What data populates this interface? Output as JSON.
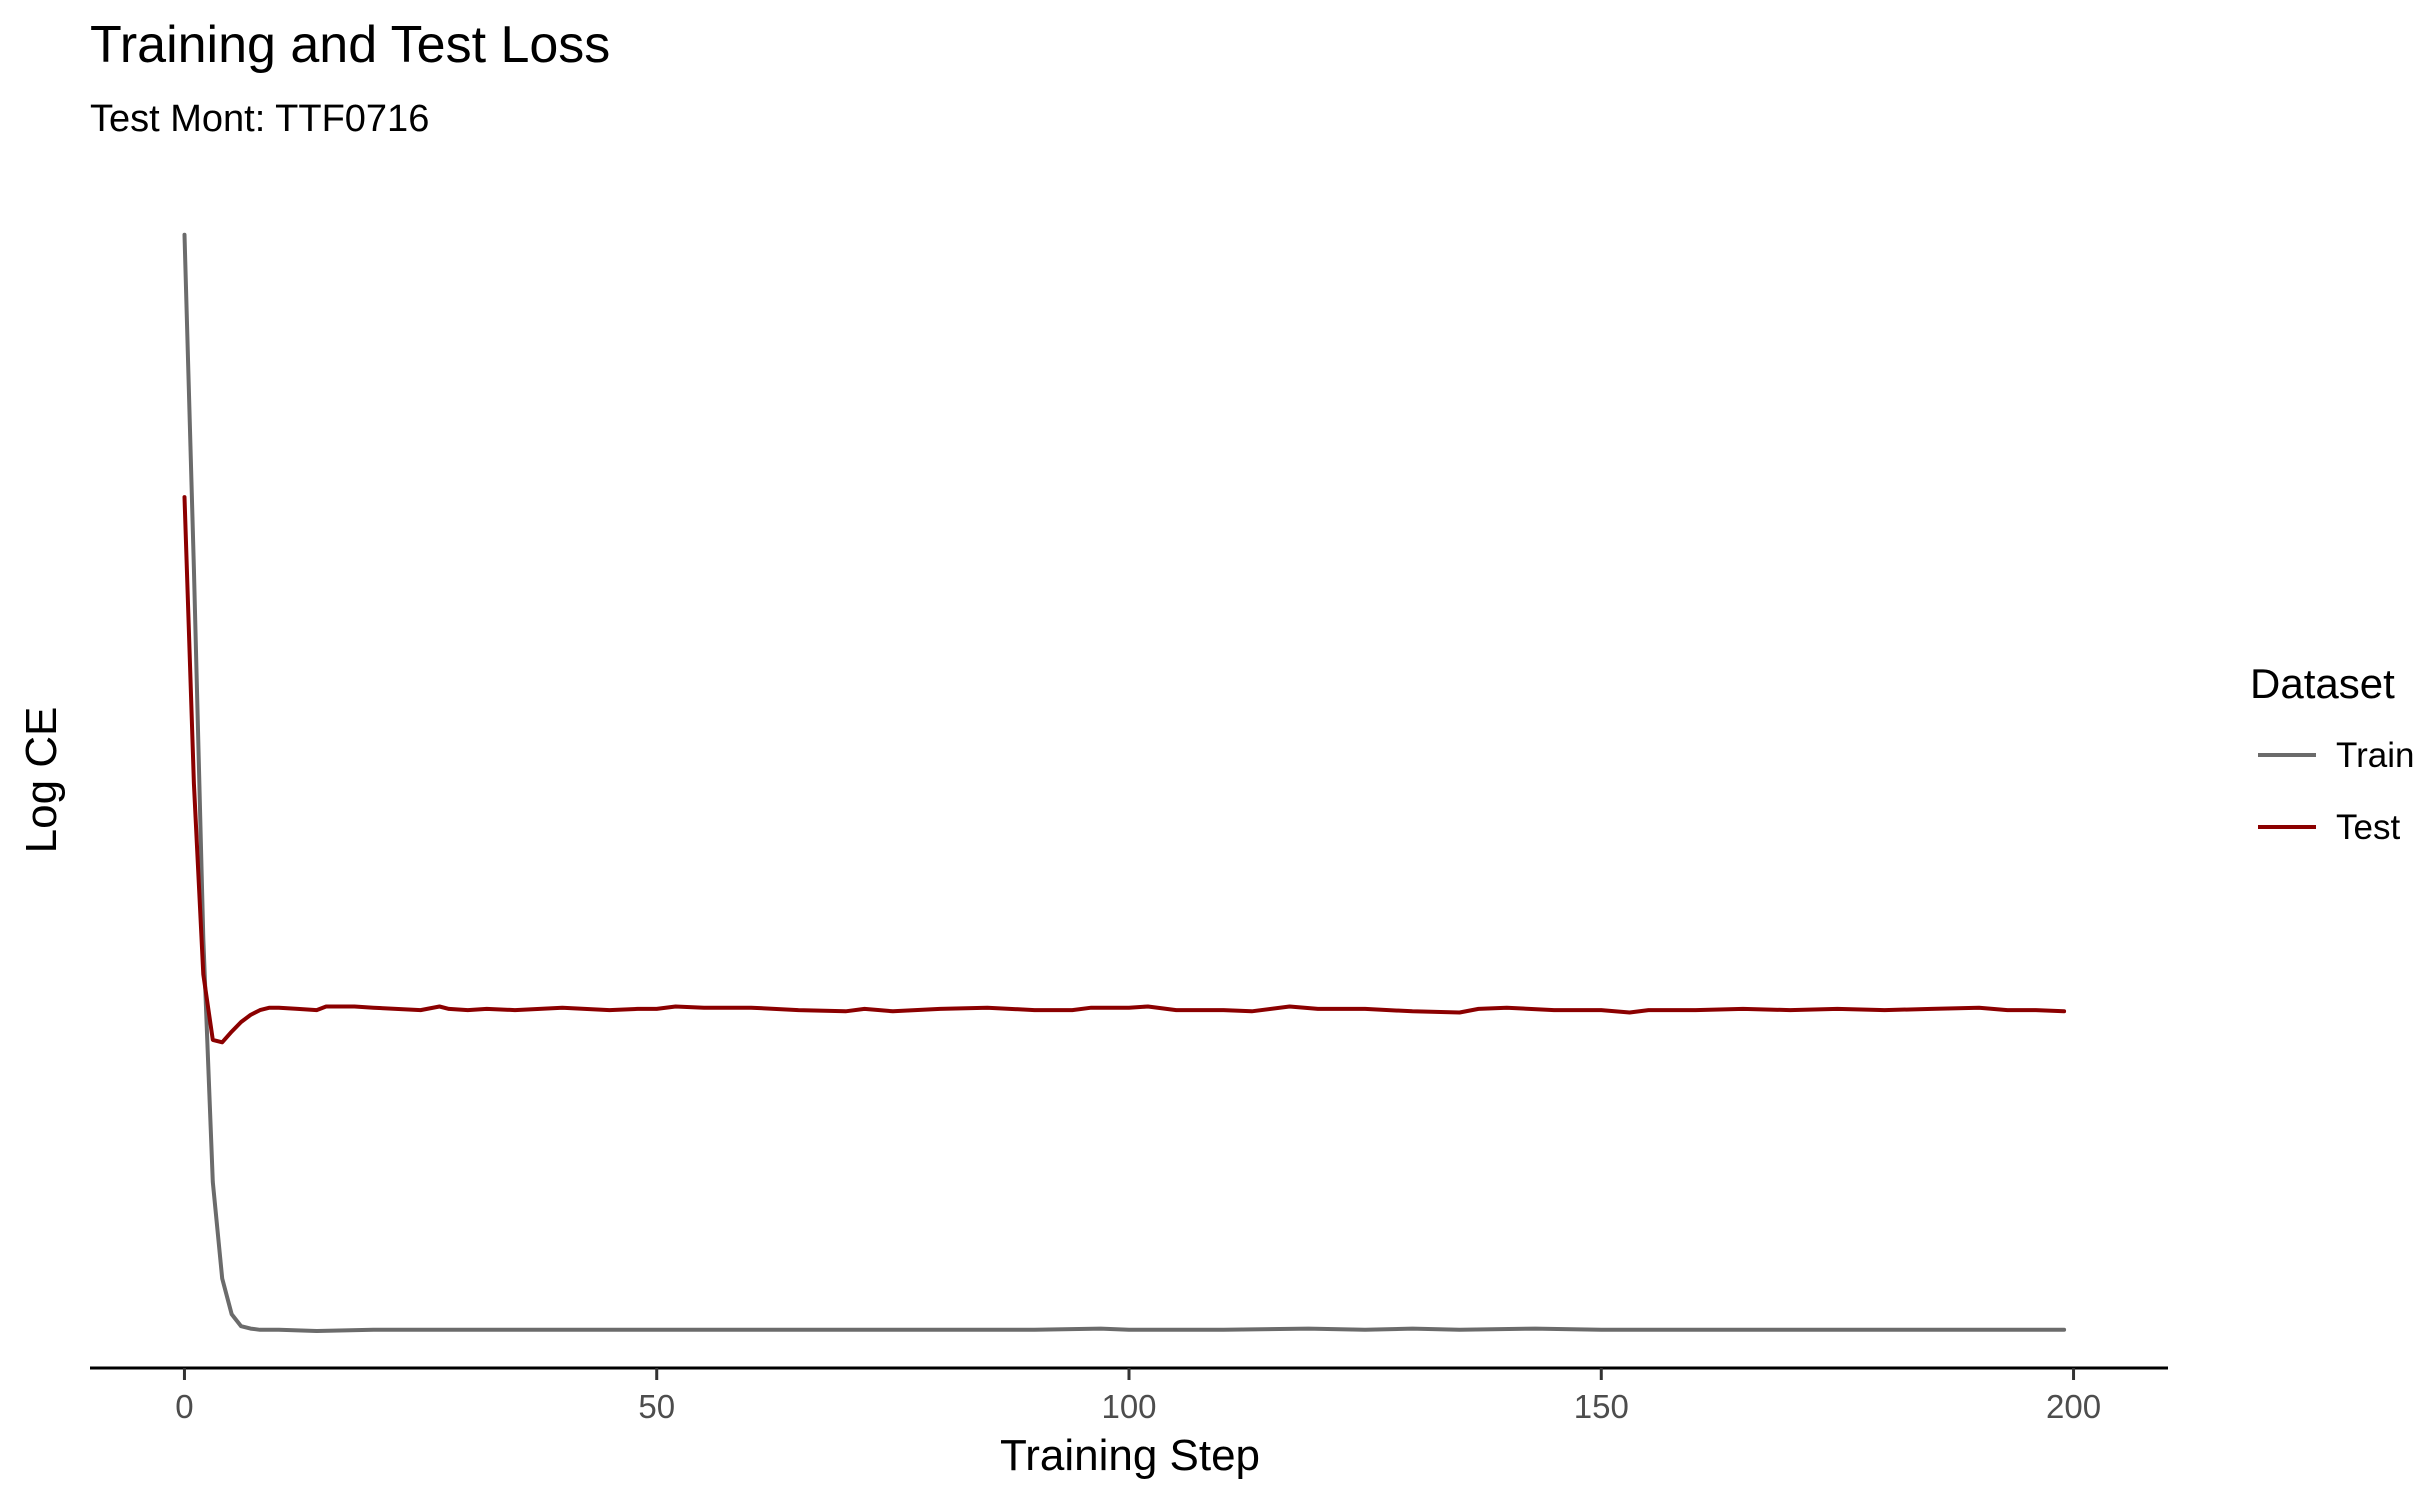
{
  "chart_data": {
    "type": "line",
    "title": "Training and Test Loss",
    "subtitle": "Test Mont: TTF0716",
    "xlabel": "Training Step",
    "ylabel": "Log CE",
    "xlim": [
      -10,
      210
    ],
    "ylim": [
      0,
      1
    ],
    "xticks": [
      0,
      50,
      100,
      150,
      200
    ],
    "xtick_labels": [
      "0",
      "50",
      "100",
      "150",
      "200"
    ],
    "y_tick_labels_shown": false,
    "grid": false,
    "legend": {
      "title": "Dataset",
      "position": "right"
    },
    "series": [
      {
        "name": "Train",
        "color": "#6b6b6b",
        "points": [
          [
            0,
            0.95
          ],
          [
            1,
            0.67
          ],
          [
            2,
            0.36
          ],
          [
            3,
            0.156
          ],
          [
            4,
            0.075
          ],
          [
            5,
            0.045
          ],
          [
            6,
            0.035
          ],
          [
            7,
            0.033
          ],
          [
            8,
            0.032
          ],
          [
            10,
            0.032
          ],
          [
            14,
            0.031
          ],
          [
            20,
            0.032
          ],
          [
            30,
            0.032
          ],
          [
            40,
            0.032
          ],
          [
            50,
            0.032
          ],
          [
            60,
            0.032
          ],
          [
            70,
            0.032
          ],
          [
            80,
            0.032
          ],
          [
            90,
            0.032
          ],
          [
            97,
            0.033
          ],
          [
            100,
            0.032
          ],
          [
            110,
            0.032
          ],
          [
            119,
            0.033
          ],
          [
            125,
            0.032
          ],
          [
            130,
            0.033
          ],
          [
            135,
            0.032
          ],
          [
            143,
            0.033
          ],
          [
            150,
            0.032
          ],
          [
            160,
            0.032
          ],
          [
            170,
            0.032
          ],
          [
            180,
            0.032
          ],
          [
            190,
            0.032
          ],
          [
            199,
            0.032
          ]
        ]
      },
      {
        "name": "Test",
        "color": "#8b0000",
        "points": [
          [
            0,
            0.73
          ],
          [
            1,
            0.49
          ],
          [
            2,
            0.33
          ],
          [
            3,
            0.275
          ],
          [
            4,
            0.273
          ],
          [
            5,
            0.282
          ],
          [
            6,
            0.29
          ],
          [
            7,
            0.296
          ],
          [
            8,
            0.3
          ],
          [
            9,
            0.302
          ],
          [
            10,
            0.302
          ],
          [
            12,
            0.301
          ],
          [
            14,
            0.3
          ],
          [
            15,
            0.303
          ],
          [
            18,
            0.303
          ],
          [
            20,
            0.302
          ],
          [
            25,
            0.3
          ],
          [
            27,
            0.303
          ],
          [
            28,
            0.301
          ],
          [
            30,
            0.3
          ],
          [
            32,
            0.301
          ],
          [
            35,
            0.3
          ],
          [
            40,
            0.302
          ],
          [
            45,
            0.3
          ],
          [
            48,
            0.301
          ],
          [
            50,
            0.301
          ],
          [
            52,
            0.303
          ],
          [
            55,
            0.302
          ],
          [
            60,
            0.302
          ],
          [
            65,
            0.3
          ],
          [
            70,
            0.299
          ],
          [
            72,
            0.301
          ],
          [
            75,
            0.299
          ],
          [
            80,
            0.301
          ],
          [
            85,
            0.302
          ],
          [
            90,
            0.3
          ],
          [
            94,
            0.3
          ],
          [
            96,
            0.302
          ],
          [
            100,
            0.302
          ],
          [
            102,
            0.303
          ],
          [
            105,
            0.3
          ],
          [
            110,
            0.3
          ],
          [
            113,
            0.299
          ],
          [
            117,
            0.303
          ],
          [
            120,
            0.301
          ],
          [
            125,
            0.301
          ],
          [
            130,
            0.299
          ],
          [
            135,
            0.298
          ],
          [
            137,
            0.301
          ],
          [
            140,
            0.302
          ],
          [
            145,
            0.3
          ],
          [
            150,
            0.3
          ],
          [
            153,
            0.298
          ],
          [
            155,
            0.3
          ],
          [
            160,
            0.3
          ],
          [
            165,
            0.301
          ],
          [
            170,
            0.3
          ],
          [
            175,
            0.301
          ],
          [
            180,
            0.3
          ],
          [
            185,
            0.301
          ],
          [
            190,
            0.302
          ],
          [
            193,
            0.3
          ],
          [
            196,
            0.3
          ],
          [
            199,
            0.299
          ]
        ]
      }
    ]
  }
}
